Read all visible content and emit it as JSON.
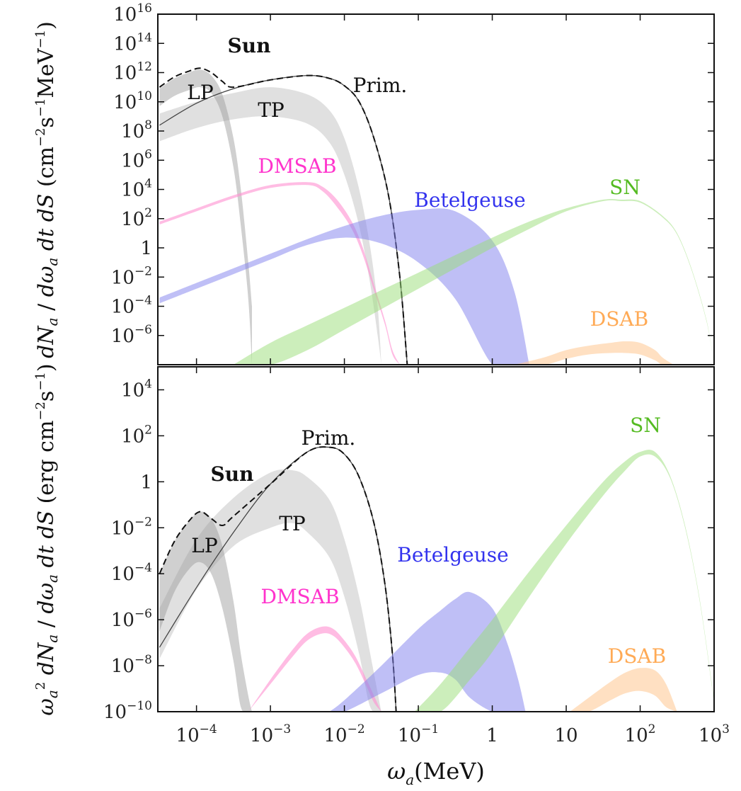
{
  "chart_data": [
    {
      "type": "area",
      "panel": "top",
      "ylabel": "dN_a / (dω_a dt dS) (cm^-2 s^-1 MeV^-1)",
      "x_scale": "log",
      "y_scale": "log",
      "xlim": [
        3e-05,
        1000
      ],
      "ylim": [
        1e-08,
        1e+16
      ],
      "yticks": [
        "10^{16}",
        "10^{14}",
        "10^{12}",
        "10^{10}",
        "10^{8}",
        "10^{6}",
        "10^{4}",
        "10^{2}",
        "1",
        "10^{-2}",
        "10^{-4}",
        "10^{-6}"
      ],
      "ytick_values": [
        16,
        14,
        12,
        10,
        8,
        6,
        4,
        2,
        0,
        -2,
        -4,
        -6
      ],
      "annotations": [
        {
          "text": "Sun",
          "bold": true,
          "color": "#111111"
        },
        {
          "text": "LP",
          "color": "#111111"
        },
        {
          "text": "TP",
          "color": "#111111"
        },
        {
          "text": "Prim.",
          "color": "#111111"
        },
        {
          "text": "DMSAB",
          "color": "#ff33cc"
        },
        {
          "text": "Betelgeuse",
          "color": "#3333ee"
        },
        {
          "text": "SN",
          "color": "#55bb22"
        },
        {
          "text": "DSAB",
          "color": "#ffaa55"
        }
      ],
      "series": [
        {
          "name": "LP",
          "color": "#777777",
          "opacity": 0.35,
          "log_x": [
            -4.5,
            -4.3,
            -4.1,
            -3.95,
            -3.8,
            -3.65,
            -3.5,
            -3.4,
            -3.3,
            -3.25
          ],
          "upper_log": [
            10.9,
            11.6,
            12.0,
            12.2,
            11.8,
            10.5,
            7.5,
            4.0,
            -1.0,
            -4.0
          ],
          "lower_log": [
            9.7,
            10.4,
            10.8,
            11.0,
            10.6,
            9.0,
            5.5,
            1.5,
            -3.5,
            -8.0
          ]
        },
        {
          "name": "TP",
          "color": "#999999",
          "opacity": 0.3,
          "log_x": [
            -4.5,
            -4.0,
            -3.5,
            -3.0,
            -2.5,
            -2.2,
            -2.0,
            -1.8,
            -1.65,
            -1.55,
            -1.5
          ],
          "upper_log": [
            9.2,
            10.0,
            10.6,
            11.0,
            10.5,
            9.4,
            7.5,
            4.0,
            0.0,
            -4.0,
            -8.0
          ],
          "lower_log": [
            7.3,
            8.2,
            8.8,
            9.0,
            8.5,
            7.2,
            5.0,
            1.5,
            -2.5,
            -6.0,
            -8.0
          ]
        },
        {
          "name": "Prim.",
          "color": "#444444",
          "opacity": 0.9,
          "log_x": [
            -4.5,
            -4.0,
            -3.5,
            -3.0,
            -2.5,
            -2.2,
            -2.0,
            -1.8,
            -1.6,
            -1.4,
            -1.25,
            -1.15
          ],
          "values_log": [
            8.4,
            9.9,
            10.9,
            11.5,
            11.8,
            11.6,
            11.1,
            10.0,
            7.5,
            3.5,
            -2.0,
            -8.0
          ]
        },
        {
          "name": "Sun (total)",
          "color": "#111111",
          "dashed": true,
          "log_x": [
            -4.5,
            -4.3,
            -4.1,
            -3.95,
            -3.8,
            -3.65,
            -3.5,
            -3.0,
            -2.5,
            -2.2,
            -2.0,
            -1.8,
            -1.6,
            -1.4,
            -1.25,
            -1.15
          ],
          "values_log": [
            11.0,
            11.7,
            12.1,
            12.3,
            12.0,
            11.4,
            11.0,
            11.5,
            11.8,
            11.6,
            11.1,
            10.0,
            7.5,
            3.5,
            -2.0,
            -8.0
          ]
        },
        {
          "name": "DMSAB",
          "color": "#ff8fd0",
          "opacity": 0.6,
          "log_x": [
            -4.5,
            -4.0,
            -3.5,
            -3.0,
            -2.5,
            -2.3,
            -2.1,
            -1.9,
            -1.75,
            -1.6,
            -1.45,
            -1.35,
            -1.25
          ],
          "upper_log": [
            1.8,
            2.7,
            3.6,
            4.3,
            4.5,
            4.2,
            3.3,
            1.8,
            0.0,
            -2.5,
            -5.0,
            -7.0,
            -8.0
          ],
          "lower_log": [
            1.6,
            2.5,
            3.4,
            4.1,
            4.3,
            3.9,
            2.8,
            1.3,
            -0.5,
            -2.9,
            -5.3,
            -7.3,
            -8.0
          ]
        },
        {
          "name": "Betelgeuse",
          "color": "#8080ee",
          "opacity": 0.5,
          "log_x": [
            -4.5,
            -4.0,
            -3.5,
            -3.0,
            -2.5,
            -2.0,
            -1.5,
            -1.0,
            -0.5,
            0.0,
            0.3,
            0.5
          ],
          "upper_log": [
            -3.4,
            -2.4,
            -1.4,
            -0.4,
            0.6,
            1.5,
            2.2,
            2.6,
            2.5,
            0.5,
            -3.0,
            -8.0
          ],
          "lower_log": [
            -3.8,
            -2.8,
            -1.8,
            -0.8,
            0.2,
            0.7,
            0.3,
            -1.0,
            -3.5,
            -8.0,
            -8.0,
            -8.0
          ]
        },
        {
          "name": "SN",
          "color": "#99dd77",
          "opacity": 0.5,
          "log_x": [
            -3.5,
            -3.0,
            -2.5,
            -2.0,
            -1.5,
            -1.0,
            -0.5,
            0.0,
            0.5,
            1.0,
            1.5,
            1.75,
            2.0,
            2.3,
            2.5,
            2.7,
            2.9,
            3.0
          ],
          "upper_log": [
            -8.0,
            -6.5,
            -5.3,
            -4.1,
            -2.9,
            -1.7,
            -0.5,
            0.7,
            1.8,
            2.7,
            3.3,
            3.3,
            3.2,
            2.2,
            1.0,
            -1.5,
            -5.0,
            -8.0
          ],
          "lower_log": [
            -8.0,
            -8.0,
            -7.0,
            -5.6,
            -4.2,
            -2.8,
            -1.4,
            0.0,
            1.3,
            2.5,
            3.2,
            3.2,
            3.1,
            2.1,
            0.9,
            -1.6,
            -5.1,
            -8.0
          ]
        },
        {
          "name": "DSAB",
          "color": "#ffcc99",
          "opacity": 0.6,
          "log_x": [
            0.3,
            0.7,
            1.0,
            1.3,
            1.6,
            1.8,
            2.0,
            2.2,
            2.3,
            2.45
          ],
          "upper_log": [
            -8.0,
            -7.5,
            -7.0,
            -6.7,
            -6.5,
            -6.4,
            -6.5,
            -7.0,
            -7.5,
            -8.0
          ],
          "lower_log": [
            -8.0,
            -8.0,
            -7.6,
            -7.3,
            -7.2,
            -7.2,
            -7.3,
            -7.7,
            -8.0,
            -8.0
          ]
        }
      ]
    },
    {
      "type": "area",
      "panel": "bottom",
      "ylabel": "ω_a^2 dN_a / (dω_a dt dS) (erg cm^-2 s^-1)",
      "xlabel": "ω_a(MeV)",
      "x_scale": "log",
      "y_scale": "log",
      "xlim": [
        3e-05,
        1000
      ],
      "ylim": [
        1e-10,
        100000.0
      ],
      "xticks": [
        "10^{-4}",
        "10^{-3}",
        "10^{-2}",
        "10^{-1}",
        "1",
        "10",
        "10^{2}",
        "10^{3}"
      ],
      "xtick_values": [
        -4,
        -3,
        -2,
        -1,
        0,
        1,
        2,
        3
      ],
      "yticks": [
        "10^{4}",
        "10^{2}",
        "1",
        "10^{-2}",
        "10^{-4}",
        "10^{-6}",
        "10^{-8}",
        "10^{-10}"
      ],
      "ytick_values": [
        4,
        2,
        0,
        -2,
        -4,
        -6,
        -8,
        -10
      ],
      "annotations": [
        {
          "text": "Sun",
          "bold": true,
          "color": "#111111"
        },
        {
          "text": "LP",
          "color": "#111111"
        },
        {
          "text": "TP",
          "color": "#111111"
        },
        {
          "text": "Prim.",
          "color": "#111111"
        },
        {
          "text": "DMSAB",
          "color": "#ff33cc"
        },
        {
          "text": "Betelgeuse",
          "color": "#3333ee"
        },
        {
          "text": "SN",
          "color": "#55bb22"
        },
        {
          "text": "DSAB",
          "color": "#ffaa55"
        }
      ],
      "series": [
        {
          "name": "LP",
          "color": "#777777",
          "opacity": 0.35,
          "log_x": [
            -4.5,
            -4.3,
            -4.1,
            -3.95,
            -3.8,
            -3.65,
            -3.5,
            -3.4,
            -3.3,
            -3.25
          ],
          "upper_log": [
            -4.0,
            -2.6,
            -1.7,
            -1.3,
            -1.6,
            -2.8,
            -5.2,
            -7.5,
            -9.3,
            -10.0
          ],
          "lower_log": [
            -6.5,
            -4.8,
            -3.8,
            -3.5,
            -4.0,
            -5.5,
            -7.8,
            -9.8,
            -10.0,
            -10.0
          ]
        },
        {
          "name": "TP",
          "color": "#999999",
          "opacity": 0.3,
          "log_x": [
            -4.5,
            -4.0,
            -3.5,
            -3.0,
            -2.7,
            -2.5,
            -2.2,
            -2.0,
            -1.8,
            -1.65,
            -1.5
          ],
          "upper_log": [
            -5.5,
            -2.5,
            -0.7,
            0.4,
            0.5,
            0.2,
            -0.8,
            -2.5,
            -5.0,
            -7.5,
            -10.0
          ],
          "lower_log": [
            -7.7,
            -4.7,
            -2.8,
            -2.0,
            -1.8,
            -2.2,
            -3.3,
            -5.0,
            -7.5,
            -9.8,
            -10.0
          ]
        },
        {
          "name": "Prim.",
          "color": "#444444",
          "opacity": 0.9,
          "log_x": [
            -4.5,
            -4.0,
            -3.5,
            -3.0,
            -2.5,
            -2.2,
            -2.0,
            -1.8,
            -1.6,
            -1.45,
            -1.35,
            -1.3
          ],
          "values_log": [
            -7.2,
            -4.6,
            -2.2,
            -0.1,
            1.3,
            1.5,
            1.2,
            0.2,
            -1.8,
            -4.5,
            -7.5,
            -10.0
          ]
        },
        {
          "name": "Sun (total)",
          "color": "#111111",
          "dashed": true,
          "log_x": [
            -4.5,
            -4.3,
            -4.1,
            -3.95,
            -3.8,
            -3.65,
            -3.5,
            -3.0,
            -2.5,
            -2.2,
            -2.0,
            -1.8,
            -1.6,
            -1.45,
            -1.35,
            -1.3
          ],
          "values_log": [
            -4.0,
            -2.6,
            -1.7,
            -1.3,
            -1.6,
            -1.9,
            -1.5,
            -0.1,
            1.3,
            1.5,
            1.2,
            0.2,
            -1.8,
            -4.5,
            -7.5,
            -10.0
          ]
        },
        {
          "name": "DMSAB",
          "color": "#ff8fd0",
          "opacity": 0.6,
          "log_x": [
            -3.3,
            -3.0,
            -2.7,
            -2.5,
            -2.3,
            -2.15,
            -2.0,
            -1.85,
            -1.7,
            -1.6,
            -1.5
          ],
          "upper_log": [
            -10.0,
            -8.6,
            -7.3,
            -6.6,
            -6.3,
            -6.4,
            -6.9,
            -7.6,
            -8.6,
            -9.3,
            -10.0
          ],
          "lower_log": [
            -10.0,
            -8.8,
            -7.6,
            -6.9,
            -6.6,
            -6.7,
            -7.2,
            -7.9,
            -8.9,
            -9.6,
            -10.0
          ]
        },
        {
          "name": "Betelgeuse",
          "color": "#8080ee",
          "opacity": 0.5,
          "log_x": [
            -2.2,
            -2.0,
            -1.5,
            -1.0,
            -0.7,
            -0.5,
            -0.3,
            0.0,
            0.2,
            0.35,
            0.45
          ],
          "upper_log": [
            -10.0,
            -9.5,
            -8.0,
            -6.4,
            -5.6,
            -5.1,
            -4.8,
            -5.5,
            -7.0,
            -8.6,
            -10.0
          ],
          "lower_log": [
            -10.0,
            -10.0,
            -9.2,
            -8.4,
            -8.3,
            -8.6,
            -9.4,
            -10.0,
            -10.0,
            -10.0,
            -10.0
          ]
        },
        {
          "name": "SN",
          "color": "#99dd77",
          "opacity": 0.5,
          "log_x": [
            -1.05,
            -0.7,
            -0.3,
            0.0,
            0.5,
            1.0,
            1.5,
            1.8,
            2.0,
            2.2,
            2.4,
            2.6,
            2.8,
            3.0
          ],
          "upper_log": [
            -10.0,
            -8.8,
            -7.2,
            -6.0,
            -3.9,
            -1.9,
            0.0,
            0.9,
            1.3,
            1.3,
            0.3,
            -1.8,
            -5.0,
            -9.5
          ],
          "lower_log": [
            -10.0,
            -10.0,
            -8.6,
            -7.4,
            -5.0,
            -2.7,
            -0.6,
            0.5,
            1.1,
            1.1,
            0.2,
            -1.9,
            -5.1,
            -9.6
          ]
        },
        {
          "name": "DSAB",
          "color": "#ffcc99",
          "opacity": 0.6,
          "log_x": [
            1.05,
            1.3,
            1.6,
            1.8,
            2.0,
            2.2,
            2.35,
            2.5
          ],
          "upper_log": [
            -10.0,
            -9.4,
            -8.7,
            -8.3,
            -8.1,
            -8.2,
            -8.8,
            -10.0
          ],
          "lower_log": [
            -10.0,
            -10.0,
            -9.5,
            -9.2,
            -9.1,
            -9.3,
            -9.8,
            -10.0
          ]
        }
      ]
    }
  ]
}
